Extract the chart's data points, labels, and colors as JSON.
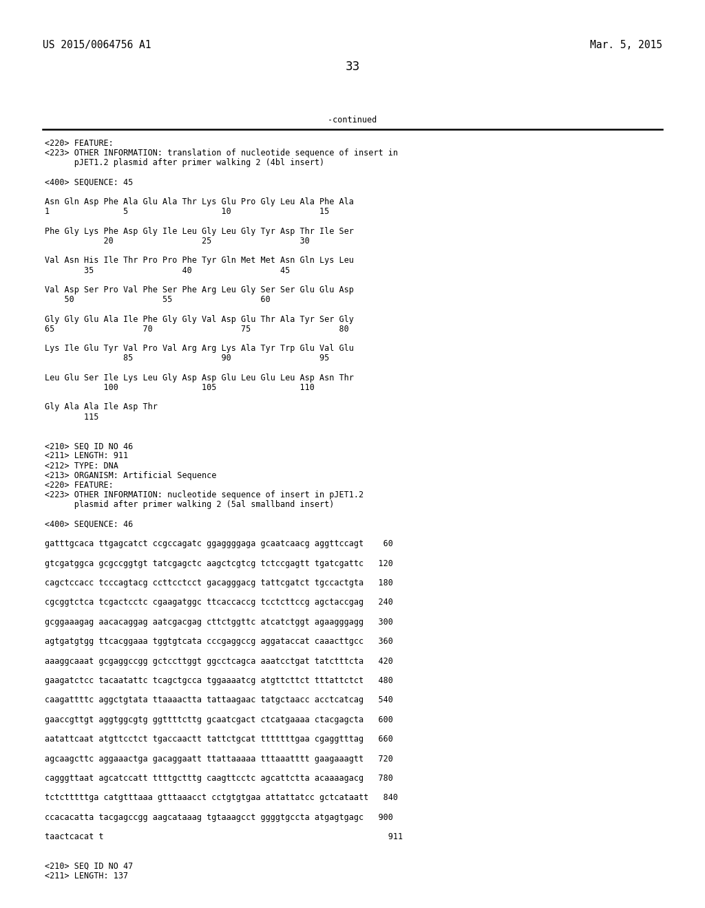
{
  "bg_color": "#ffffff",
  "text_color": "#000000",
  "header_left": "US 2015/0064756 A1",
  "header_right": "Mar. 5, 2015",
  "page_number": "33",
  "continued_text": "-continued",
  "font_size_header": 10.5,
  "font_size_body": 8.5,
  "font_size_page": 12,
  "content_lines": [
    "<220> FEATURE:",
    "<223> OTHER INFORMATION: translation of nucleotide sequence of insert in",
    "      pJET1.2 plasmid after primer walking 2 (4bl insert)",
    "",
    "<400> SEQUENCE: 45",
    "",
    "Asn Gln Asp Phe Ala Glu Ala Thr Lys Glu Pro Gly Leu Ala Phe Ala",
    "1               5                   10                  15",
    "",
    "Phe Gly Lys Phe Asp Gly Ile Leu Gly Leu Gly Tyr Asp Thr Ile Ser",
    "            20                  25                  30",
    "",
    "Val Asn His Ile Thr Pro Pro Phe Tyr Gln Met Met Asn Gln Lys Leu",
    "        35                  40                  45",
    "",
    "Val Asp Ser Pro Val Phe Ser Phe Arg Leu Gly Ser Ser Glu Glu Asp",
    "    50                  55                  60",
    "",
    "Gly Gly Glu Ala Ile Phe Gly Gly Val Asp Glu Thr Ala Tyr Ser Gly",
    "65                  70                  75                  80",
    "",
    "Lys Ile Glu Tyr Val Pro Val Arg Arg Lys Ala Tyr Trp Glu Val Glu",
    "                85                  90                  95",
    "",
    "Leu Glu Ser Ile Lys Leu Gly Asp Asp Glu Leu Glu Leu Asp Asn Thr",
    "            100                 105                 110",
    "",
    "Gly Ala Ala Ile Asp Thr",
    "        115",
    "",
    "",
    "<210> SEQ ID NO 46",
    "<211> LENGTH: 911",
    "<212> TYPE: DNA",
    "<213> ORGANISM: Artificial Sequence",
    "<220> FEATURE:",
    "<223> OTHER INFORMATION: nucleotide sequence of insert in pJET1.2",
    "      plasmid after primer walking 2 (5al smallband insert)",
    "",
    "<400> SEQUENCE: 46",
    "",
    "gatttgcaca ttgagcatct ccgccagatc ggaggggaga gcaatcaacg aggttccagt    60",
    "",
    "gtcgatggca gcgccggtgt tatcgagctc aagctcgtcg tctccgagtt tgatcgattc   120",
    "",
    "cagctccacc tcccagtacg ccttcctcct gacagggacg tattcgatct tgccactgta   180",
    "",
    "cgcggtctca tcgactcctc cgaagatggc ttcaccaccg tcctcttccg agctaccgag   240",
    "",
    "gcggaaagag aacacaggag aatcgacgag cttctggttc atcatctggt agaagggagg   300",
    "",
    "agtgatgtgg ttcacggaaa tggtgtcata cccgaggccg aggataccat caaacttgcc   360",
    "",
    "aaaggcaaat gcgaggccgg gctccttggt ggcctcagca aaatcctgat tatctttcta   420",
    "",
    "gaagatctcc tacaatattc tcagctgcca tggaaaatcg atgttcttct tttattctct   480",
    "",
    "caagattttc aggctgtata ttaaaactta tattaagaac tatgctaacc acctcatcag   540",
    "",
    "gaaccgttgt aggtggcgtg ggttttcttg gcaatcgact ctcatgaaaa ctacgagcta   600",
    "",
    "aatattcaat atgttcctct tgaccaactt tattctgcat tttttttgaa cgaggtttag   660",
    "",
    "agcaagcttc aggaaactga gacaggaatt ttattaaaaa tttaaatttt gaagaaagtt   720",
    "",
    "cagggttaat agcatccatt ttttgctttg caagttcctc agcattctta acaaaagacg   780",
    "",
    "tctctttttga catgtttaaa gtttaaacct cctgtgtgaa attattatcc gctcataatt   840",
    "",
    "ccacacatta tacgagccgg aagcataaag tgtaaagcct ggggtgccta atgagtgagc   900",
    "",
    "taactcacat t                                                          911",
    "",
    "",
    "<210> SEQ ID NO 47",
    "<211> LENGTH: 137"
  ]
}
